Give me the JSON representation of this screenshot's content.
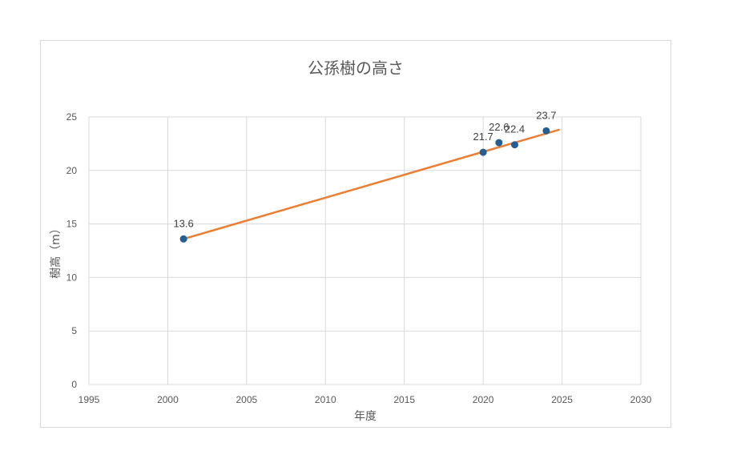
{
  "chart_data": {
    "type": "scatter",
    "title": "公孫樹の高さ",
    "xlabel": "年度",
    "ylabel": "樹高（m）",
    "xlim": [
      1995,
      2030
    ],
    "ylim": [
      0,
      25
    ],
    "x_ticks": [
      1995,
      2000,
      2005,
      2010,
      2015,
      2020,
      2025,
      2030
    ],
    "y_ticks": [
      0,
      5,
      10,
      15,
      20,
      25
    ],
    "grid": true,
    "series": [
      {
        "x": [
          2001,
          2020,
          2021,
          2022,
          2024
        ],
        "y": [
          13.6,
          21.7,
          22.6,
          22.4,
          23.7
        ],
        "labels": [
          "13.6",
          "21.7",
          "22.6",
          "22.4",
          "23.7"
        ],
        "marker_color": "#255e91"
      }
    ],
    "trendline": {
      "type": "linear",
      "x_range": [
        2001,
        2024.8
      ],
      "y_range": [
        13.6,
        23.8
      ],
      "color": "#ed7d31"
    }
  }
}
